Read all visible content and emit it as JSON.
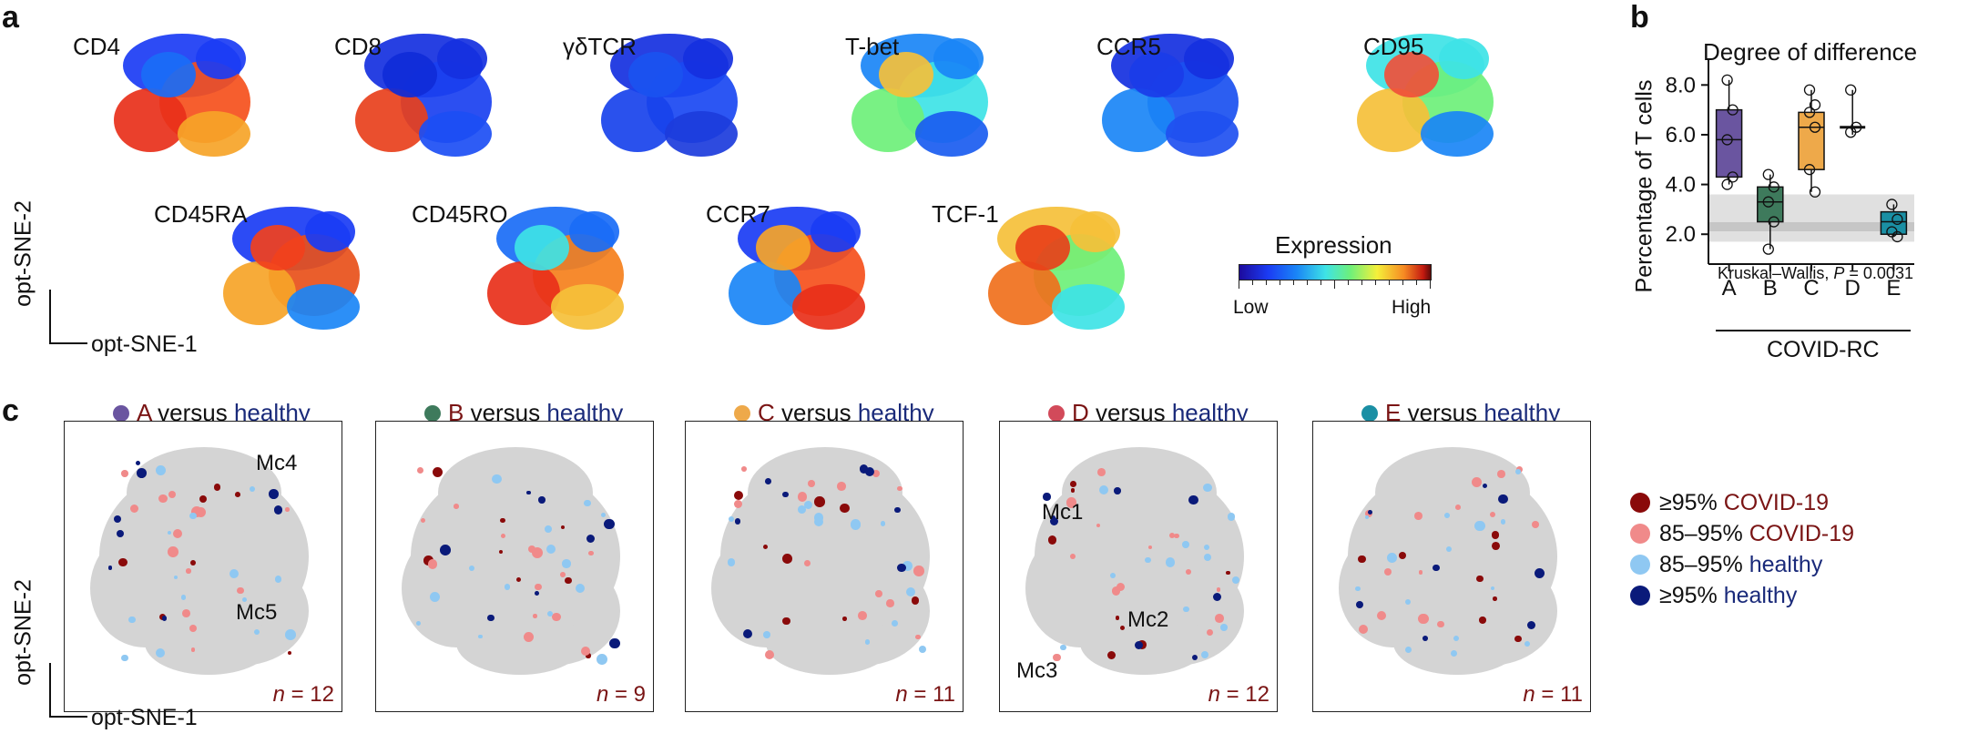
{
  "panel_a": {
    "letter": "a",
    "markers": [
      "CD4",
      "CD8",
      "γδTCR",
      "T-bet",
      "CCR5",
      "CD95",
      "CD45RA",
      "CD45RO",
      "CCR7",
      "TCF-1"
    ],
    "axis_y": "opt-SNE-2",
    "axis_x": "opt-SNE-1",
    "colorbar": {
      "title": "Expression",
      "low": "Low",
      "high": "High"
    }
  },
  "panel_b": {
    "letter": "b",
    "title": "Degree of difference",
    "ylabel": "Percentage of T cells",
    "xlabel": "COVID-RC",
    "stat_text": "Kruskal–Wallis, ",
    "stat_p": "P",
    "stat_value": " = 0.0031"
  },
  "chart_data": {
    "type": "box",
    "title": "Degree of difference",
    "xlabel": "COVID-RC",
    "ylabel": "Percentage of T cells",
    "categories": [
      "A",
      "B",
      "C",
      "D",
      "E"
    ],
    "ytick_labels": [
      "2.0",
      "4.0",
      "6.0",
      "8.0"
    ],
    "yticks": [
      2.0,
      4.0,
      6.0,
      8.0
    ],
    "ylim": [
      0.8,
      9.0
    ],
    "background_band": {
      "low": 1.7,
      "high": 3.6,
      "center": 2.3
    },
    "boxes": [
      {
        "name": "A",
        "color": "#6a55a0",
        "q1": 4.3,
        "median": 5.8,
        "q3": 7.0,
        "whisker_low": 4.0,
        "whisker_high": 8.2,
        "points": [
          8.2,
          7.0,
          5.8,
          4.3,
          4.0
        ]
      },
      {
        "name": "B",
        "color": "#3e7a5c",
        "q1": 2.5,
        "median": 3.3,
        "q3": 3.9,
        "whisker_low": 1.4,
        "whisker_high": 4.4,
        "points": [
          4.4,
          3.9,
          3.3,
          2.5,
          1.4
        ]
      },
      {
        "name": "C",
        "color": "#eea94a",
        "q1": 4.6,
        "median": 6.3,
        "q3": 6.9,
        "whisker_low": 3.7,
        "whisker_high": 7.8,
        "points": [
          7.8,
          7.2,
          6.9,
          6.3,
          4.6,
          3.7
        ]
      },
      {
        "name": "D",
        "color": "#111111",
        "q1": 6.3,
        "median": 6.3,
        "q3": 6.3,
        "whisker_low": 6.0,
        "whisker_high": 7.8,
        "points": [
          7.8,
          6.3,
          6.1
        ]
      },
      {
        "name": "E",
        "color": "#1a8fa4",
        "q1": 2.0,
        "median": 2.5,
        "q3": 2.9,
        "whisker_low": 1.9,
        "whisker_high": 3.2,
        "points": [
          3.2,
          2.6,
          2.1,
          1.9
        ]
      }
    ]
  },
  "panel_c": {
    "letter": "c",
    "connector": " versus ",
    "healthy_word": "healthy",
    "axis_y": "opt-SNE-2",
    "axis_x": "opt-SNE-1",
    "n_prefix": "n",
    "comparisons": [
      {
        "group": "A",
        "dot_color": "#6a55a0",
        "n": " = 12",
        "clusters": [
          "Mc4",
          "Mc5"
        ]
      },
      {
        "group": "B",
        "dot_color": "#3e7a5c",
        "n": " = 9",
        "clusters": []
      },
      {
        "group": "C",
        "dot_color": "#eea94a",
        "n": " = 11",
        "clusters": []
      },
      {
        "group": "D",
        "dot_color": "#d24a5a",
        "n": " = 12",
        "clusters": [
          "Mc1",
          "Mc2",
          "Mc3"
        ]
      },
      {
        "group": "E",
        "dot_color": "#1a8fa4",
        "n": " = 11",
        "clusters": []
      }
    ],
    "legend": [
      {
        "pct": "≥95% ",
        "who": "COVID-19",
        "color": "#8a0a0a",
        "text_color": "#7a1414"
      },
      {
        "pct": "85–95% ",
        "who": "COVID-19",
        "color": "#f08a8a",
        "text_color": "#7a1414"
      },
      {
        "pct": "85–95% ",
        "who": "healthy",
        "color": "#8fc8f2",
        "text_color": "#1a2a7a"
      },
      {
        "pct": "≥95% ",
        "who": "healthy",
        "color": "#0a1a7a",
        "text_color": "#1a2a7a"
      }
    ]
  }
}
